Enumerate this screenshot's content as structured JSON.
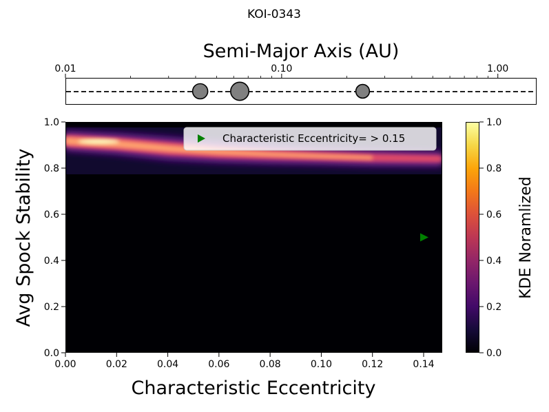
{
  "chart_data": [
    {
      "type": "scatter",
      "title": "KOI-0343",
      "xlabel": "Semi-Major Axis (AU)",
      "xscale": "log",
      "xlim": [
        0.01,
        1.5
      ],
      "xticks": [
        {
          "value": 0.01,
          "label": "0.01"
        },
        {
          "value": 0.1,
          "label": "0.10"
        },
        {
          "value": 1.0,
          "label": "1.00"
        }
      ],
      "colors": {
        "planet_fill": "#808080",
        "orbit_line": "#000000"
      },
      "series": [
        {
          "x": [
            0.042,
            0.064,
            0.237
          ],
          "y": [
            0,
            0,
            0
          ],
          "relative_size": [
            1.0,
            1.2,
            0.9
          ]
        }
      ]
    },
    {
      "type": "heatmap",
      "xlabel": "Characteristic Eccentricity",
      "ylabel": "Avg Spock Stability",
      "xlim": [
        0.0,
        0.147
      ],
      "ylim": [
        0.0,
        1.0
      ],
      "xticks": [
        "0.00",
        "0.02",
        "0.04",
        "0.06",
        "0.08",
        "0.10",
        "0.12",
        "0.14"
      ],
      "yticks": [
        "0.0",
        "0.2",
        "0.4",
        "0.6",
        "0.8",
        "1.0"
      ],
      "colormap": "inferno",
      "colorbar": {
        "label": "KDE Noramlized",
        "range": [
          0.0,
          1.0
        ],
        "ticks": [
          "0.0",
          "0.2",
          "0.4",
          "0.6",
          "0.8",
          "1.0"
        ]
      },
      "kde_band": {
        "x": [
          0.0,
          0.02,
          0.04,
          0.06,
          0.08,
          0.1,
          0.12,
          0.147
        ],
        "ridge_y": [
          0.918,
          0.905,
          0.885,
          0.87,
          0.86,
          0.852,
          0.845,
          0.84
        ],
        "peak_x": 0.013,
        "peak_y": 0.915
      },
      "marker": {
        "x": 0.14,
        "y": 0.5,
        "symbol": "triangle-right",
        "color": "#008000"
      },
      "legend": {
        "label": "Characteristic Eccentricity=$>$0.15",
        "position": "top-right"
      }
    }
  ]
}
